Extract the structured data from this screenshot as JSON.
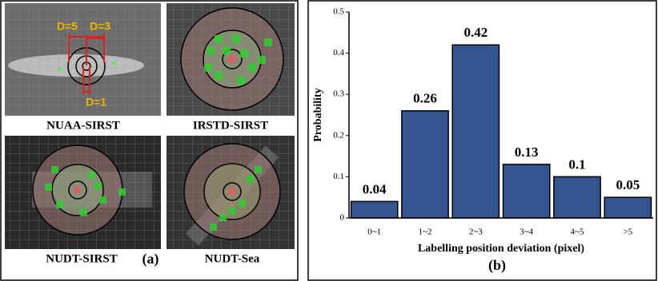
{
  "panel_a": {
    "images": [
      {
        "label": "NUAA-SIRST",
        "annotations": [
          "D=5",
          "D=3",
          "D=1"
        ]
      },
      {
        "label": "IRSTD-SIRST"
      },
      {
        "label": "NUDT-SIRST"
      },
      {
        "label": "NUDT-Sea"
      }
    ],
    "caption": "(a)"
  },
  "chart_data": {
    "type": "bar",
    "caption": "(b)",
    "x_label": "Labelling position deviation (pixel)",
    "y_label": "Probability",
    "categories": [
      "0~1",
      "1~2",
      "2~3",
      "3~4",
      "4~5",
      ">5"
    ],
    "values": [
      0.04,
      0.26,
      0.42,
      0.13,
      0.1,
      0.05
    ],
    "color": "#34558f",
    "ylim": [
      0,
      0.5
    ],
    "yticks": [
      0,
      0.1,
      0.2,
      0.3,
      0.4,
      0.5
    ]
  }
}
